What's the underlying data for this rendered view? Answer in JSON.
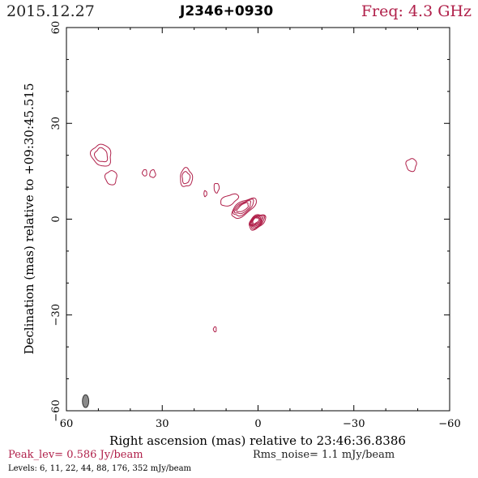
{
  "header": {
    "date": "2015.12.27",
    "source": "J2346+0930",
    "freq": "Freq: 4.3 GHz"
  },
  "colors": {
    "contour": "#b0204a",
    "beam": "#8a8a8a"
  },
  "chart_data": {
    "type": "contour",
    "xlabel": "Right ascension (mas) relative to 23:46:36.8386",
    "ylabel": "Declination (mas) relative to +09:30:45.515",
    "xlim": [
      60,
      -60
    ],
    "ylim": [
      -60,
      60
    ],
    "xticks": [
      60,
      30,
      0,
      -30,
      -60
    ],
    "yticks": [
      60,
      30,
      0,
      -30,
      -60
    ],
    "xtick_labels": [
      "60",
      "30",
      "0",
      "−30",
      "−60"
    ],
    "ytick_labels": [
      "60",
      "30",
      "0",
      "−30",
      "−60"
    ],
    "peak_level": "Peak_lev=  0.586 Jy/beam",
    "rms_noise": "Rms_noise=   1.1 mJy/beam",
    "levels_text": "Levels:   6,  11,  22,  44,  88, 176, 352 mJy/beam",
    "levels_mJy_per_beam": [
      6,
      11,
      22,
      44,
      88,
      176,
      352
    ],
    "core_position_mas": [
      0,
      0
    ],
    "beam": {
      "ra_mas": 54,
      "dec_mas": -57,
      "major_mas": 4.0,
      "minor_mas": 2.0,
      "pa_deg": 0
    },
    "components": [
      {
        "name": "core",
        "ra": 0.3,
        "dec": -0.8,
        "rx": 3.0,
        "ry": 1.8,
        "pa": -40,
        "levels": 7
      },
      {
        "name": "inner-jet",
        "ra": 4.5,
        "dec": 3.5,
        "rx": 4.5,
        "ry": 2.0,
        "pa": -35,
        "levels": 4
      },
      {
        "name": "jet-knot",
        "ra": 9.0,
        "dec": 6.0,
        "rx": 3.0,
        "ry": 1.5,
        "pa": -25,
        "levels": 1
      },
      {
        "name": "blob-a",
        "ra": 49.0,
        "dec": 20.0,
        "rx": 3.0,
        "ry": 3.5,
        "pa": -30,
        "levels": 2
      },
      {
        "name": "blob-b",
        "ra": 46.0,
        "dec": 13.0,
        "rx": 1.8,
        "ry": 2.2,
        "pa": 0,
        "levels": 1
      },
      {
        "name": "blob-c",
        "ra": 35.5,
        "dec": 14.5,
        "rx": 0.7,
        "ry": 1.0,
        "pa": 0,
        "levels": 1
      },
      {
        "name": "blob-d",
        "ra": 33.0,
        "dec": 14.2,
        "rx": 0.9,
        "ry": 1.2,
        "pa": 0,
        "levels": 1
      },
      {
        "name": "blob-e",
        "ra": 22.5,
        "dec": 13.0,
        "rx": 1.9,
        "ry": 2.9,
        "pa": 0,
        "levels": 2
      },
      {
        "name": "blob-f",
        "ra": 16.5,
        "dec": 8.0,
        "rx": 0.45,
        "ry": 0.9,
        "pa": 0,
        "levels": 1
      },
      {
        "name": "blob-g",
        "ra": 13.0,
        "dec": 9.8,
        "rx": 0.8,
        "ry": 1.5,
        "pa": 0,
        "levels": 1
      },
      {
        "name": "blob-h",
        "ra": -48.0,
        "dec": 17.0,
        "rx": 1.6,
        "ry": 2.0,
        "pa": 0,
        "levels": 1
      },
      {
        "name": "blob-i",
        "ra": 13.5,
        "dec": -34.5,
        "rx": 0.45,
        "ry": 0.8,
        "pa": 0,
        "levels": 1
      }
    ]
  }
}
